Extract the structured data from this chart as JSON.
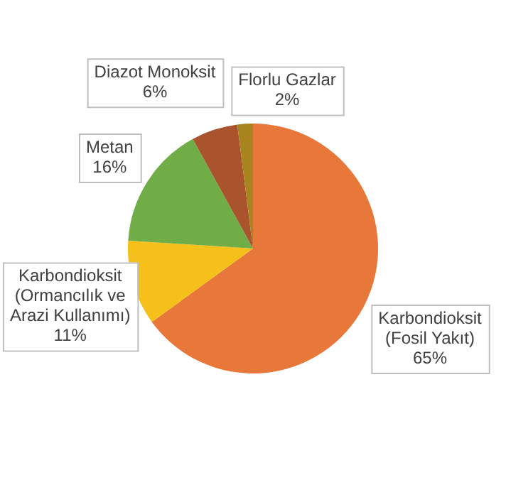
{
  "chart_data": {
    "type": "pie",
    "categories": [
      "Karbondioksit (Fosil Yakıt)",
      "Karbondioksit (Ormancılık ve Arazi Kullanımı)",
      "Metan",
      "Diazot Monoksit",
      "Florlu Gazlar"
    ],
    "values": [
      65,
      11,
      16,
      6,
      2
    ],
    "colors": [
      "#e8773a",
      "#f5c01a",
      "#70ad47",
      "#a9542d",
      "#a8841f"
    ],
    "value_labels": [
      "65%",
      "11%",
      "16%",
      "6%",
      "2%"
    ],
    "legend": false
  }
}
